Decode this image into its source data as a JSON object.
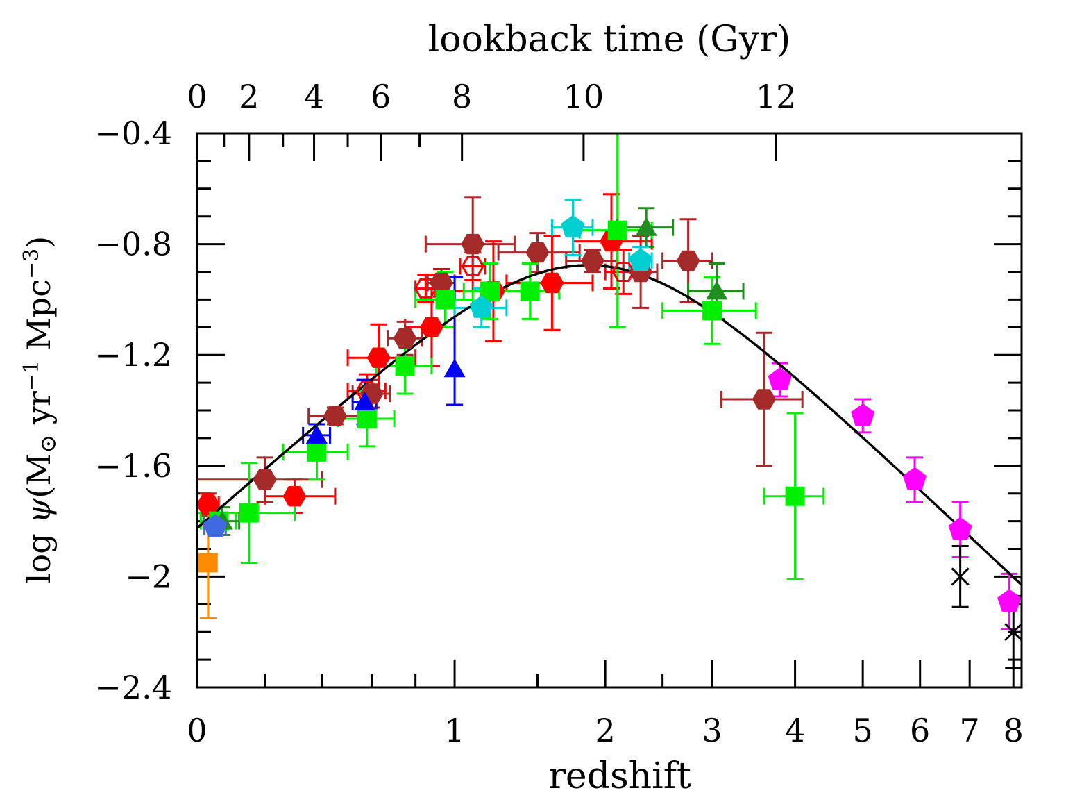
{
  "chart_data": {
    "type": "scatter",
    "x_scale": "log(1+z)",
    "xlabel": "redshift",
    "x2label": "lookback time (Gyr)",
    "ylabel": "log ψ(M⊙ yr⁻¹ Mpc⁻³)",
    "ylabel_parts": [
      "log ",
      "ψ",
      "(M",
      "⊙",
      " yr",
      "−1",
      " Mpc",
      "−3",
      ")"
    ],
    "xlim": [
      0,
      8.2
    ],
    "ylim": [
      -2.4,
      -0.4
    ],
    "x_ticks": [
      0,
      1,
      2,
      3,
      4,
      5,
      6,
      7,
      8
    ],
    "x_tick_labels": [
      "0",
      "1",
      "2",
      "3",
      "4",
      "5",
      "6",
      "7",
      "8"
    ],
    "y_ticks": [
      -2.4,
      -2.0,
      -1.6,
      -1.2,
      -0.8,
      -0.4
    ],
    "y_tick_labels": [
      "−2.4",
      "−2",
      "−1.6",
      "−1.2",
      "−0.8",
      "−0.4"
    ],
    "x2_ticks": [
      {
        "label": "0",
        "z": 0
      },
      {
        "label": "2",
        "z": 0.15
      },
      {
        "label": "4",
        "z": 0.37
      },
      {
        "label": "6",
        "z": 0.64
      },
      {
        "label": "8",
        "z": 1.04
      },
      {
        "label": "10",
        "z": 1.83
      },
      {
        "label": "12",
        "z": 3.75
      }
    ],
    "grid": false,
    "curve": {
      "description": "Madau & Dickinson fit",
      "color": "#000000",
      "formula_coeffs": {
        "a": 0.015,
        "b": 2.7,
        "c": 2.9,
        "d": 5.6
      }
    },
    "series": [
      {
        "color": "#ff0000",
        "marker": "hexagon",
        "points": [
          {
            "x": 0.03,
            "y": -1.74,
            "xerr": [
              0.03,
              0.03
            ],
            "yerr": [
              0.04,
              0.04
            ]
          },
          {
            "x": 0.3,
            "y": -1.71,
            "xerr": [
              0.1,
              0.15
            ],
            "yerr": [
              0.06,
              0.06
            ]
          },
          {
            "x": 0.63,
            "y": -1.21,
            "xerr": [
              0.13,
              0.17
            ],
            "yerr": [
              0.12,
              0.12
            ]
          },
          {
            "x": 0.88,
            "y": -1.1,
            "xerr": [
              0.13,
              0.12
            ],
            "yerr": [
              0.14,
              0.14
            ]
          },
          {
            "x": 1.22,
            "y": -0.97,
            "xerr": [
              0.22,
              0.28
            ],
            "yerr": [
              0.18,
              0.18
            ]
          },
          {
            "x": 1.6,
            "y": -0.94,
            "xerr": [
              0.3,
              0.3
            ],
            "yerr": [
              0.17,
              0.17
            ]
          },
          {
            "x": 2.05,
            "y": -0.79,
            "xerr": [
              0.3,
              0.35
            ],
            "yerr": [
              0.17,
              0.17
            ]
          }
        ]
      },
      {
        "color": "#ff0000",
        "marker": "open-hexagon",
        "points": [
          {
            "x": 0.58,
            "y": -1.33,
            "xerr": [
              0.08,
              0.08
            ],
            "yerr": [
              0.06,
              0.06
            ]
          },
          {
            "x": 0.85,
            "y": -0.96,
            "xerr": [
              0.05,
              0.05
            ],
            "yerr": [
              0.05,
              0.05
            ]
          },
          {
            "x": 1.1,
            "y": -0.88,
            "xerr": [
              0.07,
              0.07
            ],
            "yerr": [
              0.05,
              0.05
            ]
          },
          {
            "x": 2.15,
            "y": -0.9,
            "xerr": [
              0.15,
              0.15
            ],
            "yerr": [
              0.08,
              0.08
            ]
          }
        ]
      },
      {
        "color": "#a52a2a",
        "marker": "hexagon",
        "points": [
          {
            "x": 0.2,
            "y": -1.65,
            "xerr": [
              0.2,
              0.2
            ],
            "yerr": [
              0.08,
              0.08
            ]
          },
          {
            "x": 0.45,
            "y": -1.42,
            "xerr": [
              0.1,
              0.1
            ],
            "yerr": [
              0.03,
              0.03
            ]
          },
          {
            "x": 0.6,
            "y": -1.34,
            "xerr": [
              0.08,
              0.08
            ],
            "yerr": [
              0.05,
              0.05
            ]
          },
          {
            "x": 0.75,
            "y": -1.14,
            "xerr": [
              0.08,
              0.08
            ],
            "yerr": [
              0.06,
              0.06
            ]
          },
          {
            "x": 0.93,
            "y": -0.94,
            "xerr": [
              0.07,
              0.07
            ],
            "yerr": [
              0.05,
              0.05
            ]
          },
          {
            "x": 1.1,
            "y": -0.8,
            "xerr": [
              0.25,
              0.25
            ],
            "yerr": [
              0.17,
              0.17
            ]
          },
          {
            "x": 1.5,
            "y": -0.83,
            "xerr": [
              0.25,
              0.3
            ],
            "yerr": [
              0.07,
              0.07
            ]
          },
          {
            "x": 1.9,
            "y": -0.86,
            "xerr": [
              0.2,
              0.2
            ],
            "yerr": [
              0.04,
              0.04
            ]
          },
          {
            "x": 2.3,
            "y": -0.9,
            "xerr": [
              0.15,
              0.15
            ],
            "yerr": [
              0.13,
              0.13
            ]
          },
          {
            "x": 2.75,
            "y": -0.86,
            "xerr": [
              0.25,
              0.25
            ],
            "yerr": [
              0.15,
              0.15
            ]
          },
          {
            "x": 3.6,
            "y": -1.36,
            "xerr": [
              0.5,
              0.5
            ],
            "yerr": [
              0.24,
              0.24
            ]
          }
        ]
      },
      {
        "color": "#00ee00",
        "marker": "square",
        "points": [
          {
            "x": 0.06,
            "y": -1.8,
            "xerr": [
              0.05,
              0.05
            ],
            "yerr": [
              0.05,
              0.05
            ]
          },
          {
            "x": 0.15,
            "y": -1.77,
            "xerr": [
              0.15,
              0.15
            ],
            "yerr": [
              0.18,
              0.18
            ]
          },
          {
            "x": 0.38,
            "y": -1.55,
            "xerr": [
              0.12,
              0.12
            ],
            "yerr": [
              0.1,
              0.1
            ]
          },
          {
            "x": 0.58,
            "y": -1.43,
            "xerr": [
              0.12,
              0.12
            ],
            "yerr": [
              0.1,
              0.1
            ]
          },
          {
            "x": 0.75,
            "y": -1.24,
            "xerr": [
              0.13,
              0.13
            ],
            "yerr": [
              0.1,
              0.1
            ]
          },
          {
            "x": 0.95,
            "y": -1.0,
            "xerr": [
              0.15,
              0.15
            ],
            "yerr": [
              0.1,
              0.1
            ]
          },
          {
            "x": 1.2,
            "y": -0.97,
            "xerr": [
              0.15,
              0.2
            ],
            "yerr": [
              0.1,
              0.1
            ]
          },
          {
            "x": 1.45,
            "y": -0.97,
            "xerr": [
              0.2,
              0.2
            ],
            "yerr": [
              0.1,
              0.1
            ]
          },
          {
            "x": 2.1,
            "y": -0.75,
            "xerr": [
              0.3,
              0.3
            ],
            "yerr": [
              0.35,
              0.35
            ]
          },
          {
            "x": 3.0,
            "y": -1.04,
            "xerr": [
              0.5,
              0.5
            ],
            "yerr": [
              0.12,
              0.12
            ]
          },
          {
            "x": 4.0,
            "y": -1.71,
            "xerr": [
              0.4,
              0.4
            ],
            "yerr": [
              0.3,
              0.3
            ]
          }
        ]
      },
      {
        "color": "#228b22",
        "marker": "triangle",
        "points": [
          {
            "x": 0.07,
            "y": -1.8,
            "xerr": [
              0.05,
              0.05
            ],
            "yerr": [
              0.05,
              0.05
            ]
          },
          {
            "x": 2.35,
            "y": -0.74,
            "xerr": [
              0.25,
              0.25
            ],
            "yerr": [
              0.07,
              0.07
            ]
          },
          {
            "x": 3.05,
            "y": -0.97,
            "xerr": [
              0.3,
              0.3
            ],
            "yerr": [
              0.1,
              0.1
            ]
          }
        ]
      },
      {
        "color": "#0000ff",
        "marker": "triangle",
        "points": [
          {
            "x": 0.38,
            "y": -1.49,
            "xerr": [
              0.05,
              0.05
            ],
            "yerr": [
              0.04,
              0.04
            ]
          },
          {
            "x": 0.57,
            "y": -1.37,
            "xerr": [
              0.05,
              0.05
            ],
            "yerr": [
              0.08,
              0.08
            ]
          },
          {
            "x": 1.0,
            "y": -1.25,
            "xerr": [
              0,
              0
            ],
            "yerr": [
              0.13,
              0.33
            ]
          }
        ]
      },
      {
        "color": "#4169e1",
        "marker": "pentagon",
        "points": [
          {
            "x": 0.05,
            "y": -1.82,
            "xerr": [
              0.03,
              0.03
            ],
            "yerr": [
              0.02,
              0.02
            ]
          }
        ]
      },
      {
        "color": "#00ced1",
        "marker": "pentagon",
        "points": [
          {
            "x": 1.15,
            "y": -1.03,
            "xerr": [
              0.15,
              0.15
            ],
            "yerr": [
              0.07,
              0.07
            ]
          },
          {
            "x": 1.75,
            "y": -0.74,
            "xerr": [
              0.15,
              0.15
            ],
            "yerr": [
              0.1,
              0.1
            ]
          },
          {
            "x": 2.3,
            "y": -0.86,
            "xerr": [
              0.1,
              0.1
            ],
            "yerr": [
              0.05,
              0.05
            ]
          }
        ]
      },
      {
        "color": "#ff00ff",
        "marker": "pentagon",
        "points": [
          {
            "x": 3.8,
            "y": -1.29,
            "xerr": [
              0,
              0
            ],
            "yerr": [
              0.06,
              0.06
            ]
          },
          {
            "x": 5.0,
            "y": -1.42,
            "xerr": [
              0,
              0
            ],
            "yerr": [
              0.06,
              0.06
            ]
          },
          {
            "x": 5.9,
            "y": -1.65,
            "xerr": [
              0,
              0
            ],
            "yerr": [
              0.08,
              0.08
            ]
          },
          {
            "x": 6.8,
            "y": -1.83,
            "xerr": [
              0,
              0
            ],
            "yerr": [
              0.1,
              0.1
            ]
          },
          {
            "x": 7.9,
            "y": -2.09,
            "xerr": [
              0,
              0
            ],
            "yerr": [
              0.1,
              0.1
            ]
          }
        ]
      },
      {
        "color": "#ff8c00",
        "marker": "square",
        "points": [
          {
            "x": 0.03,
            "y": -1.95,
            "xerr": [
              0,
              0
            ],
            "yerr": [
              0.2,
              0.2
            ]
          }
        ]
      },
      {
        "color": "#000000",
        "marker": "cross",
        "points": [
          {
            "x": 6.8,
            "y": -2.0,
            "xerr": [
              0,
              0
            ],
            "yerr": [
              0.11,
              0.11
            ]
          },
          {
            "x": 8.0,
            "y": -2.2,
            "xerr": [
              0,
              0
            ],
            "yerr": [
              0.13,
              0.13
            ]
          }
        ]
      }
    ]
  }
}
